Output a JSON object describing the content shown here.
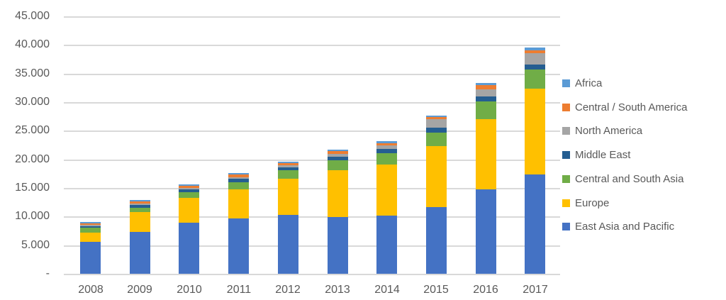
{
  "colors": {
    "background": "#ffffff",
    "gridline": "#d9d9d9",
    "axis_text": "#595959",
    "legend_text": "#595959"
  },
  "chart_data": {
    "type": "bar",
    "subtype": "stacked-vertical",
    "title": "",
    "xlabel": "",
    "ylabel": "",
    "categories": [
      "2008",
      "2009",
      "2010",
      "2011",
      "2012",
      "2013",
      "2014",
      "2015",
      "2016",
      "2017"
    ],
    "series": [
      {
        "name": "East Asia and Pacific",
        "color": "#4472C4",
        "values": [
          5600,
          7300,
          8900,
          9650,
          10350,
          9950,
          10150,
          11700,
          14700,
          17400
        ]
      },
      {
        "name": "Europe",
        "color": "#FFC000",
        "values": [
          1650,
          3500,
          4400,
          5100,
          6300,
          8100,
          8900,
          10600,
          12300,
          14900
        ]
      },
      {
        "name": "Central and South Asia",
        "color": "#70AD47",
        "values": [
          800,
          750,
          900,
          1300,
          1400,
          1750,
          2000,
          2400,
          3100,
          3400
        ]
      },
      {
        "name": "Middle East",
        "color": "#255E91",
        "values": [
          300,
          500,
          500,
          550,
          500,
          600,
          750,
          850,
          950,
          900
        ]
      },
      {
        "name": "North America",
        "color": "#A5A5A5",
        "values": [
          250,
          250,
          350,
          300,
          400,
          600,
          600,
          1500,
          1200,
          1900
        ]
      },
      {
        "name": "Central / South America",
        "color": "#ED7D31",
        "values": [
          250,
          300,
          300,
          400,
          350,
          400,
          400,
          400,
          750,
          500
        ]
      },
      {
        "name": "Africa",
        "color": "#5B9BD5",
        "values": [
          250,
          250,
          250,
          300,
          300,
          250,
          350,
          250,
          350,
          500
        ]
      }
    ],
    "totals": [
      9100,
      12850,
      15600,
      17600,
      19600,
      21650,
      23150,
      27700,
      33350,
      39500
    ],
    "y_axis": {
      "min": 0,
      "max": 45000,
      "tick_interval": 5000,
      "tick_labels": [
        "45.000",
        "40.000",
        "35.000",
        "30.000",
        "25.000",
        "20.000",
        "15.000",
        "10.000",
        "5.000",
        "-"
      ]
    },
    "grid": true,
    "legend_position": "right",
    "legend_order_top_to_bottom": [
      "Africa",
      "Central / South America",
      "North America",
      "Middle East",
      "Central and South Asia",
      "Europe",
      "East Asia and Pacific"
    ]
  }
}
